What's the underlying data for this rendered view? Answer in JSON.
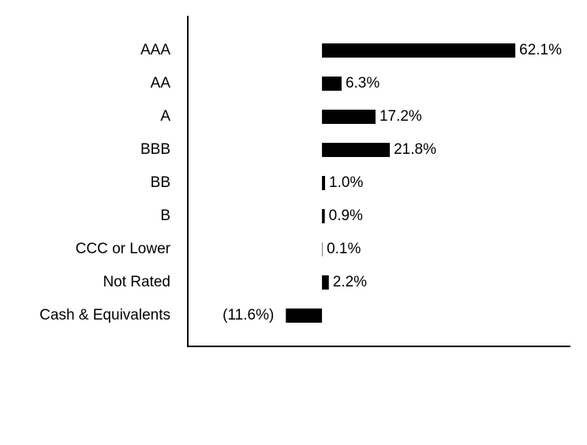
{
  "chart_data": {
    "type": "hbar",
    "categories": [
      "AAA",
      "AA",
      "A",
      "BBB",
      "BB",
      "B",
      "CCC or Lower",
      "Not Rated",
      "Cash & Equivalents"
    ],
    "values": [
      62.1,
      6.3,
      17.2,
      21.8,
      1.0,
      0.9,
      0.1,
      2.2,
      -11.6
    ],
    "value_labels": [
      "62.1%",
      "6.3%",
      "17.2%",
      "21.8%",
      "1.0%",
      "0.9%",
      "0.1%",
      "2.2%",
      "(11.6%)"
    ],
    "color": "#000000",
    "xlim": [
      -43.1,
      79.8
    ]
  }
}
